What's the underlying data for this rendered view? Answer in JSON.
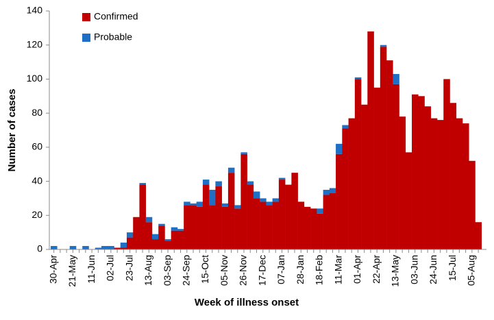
{
  "chart_data": {
    "type": "stacked_bar",
    "x_label": "Week of illness onset",
    "y_label": "Number of cases",
    "categories": [
      "30-Apr",
      null,
      null,
      "21-May",
      null,
      null,
      "11-Jun",
      null,
      null,
      "02-Jul",
      null,
      null,
      "23-Jul",
      null,
      null,
      "13-Aug",
      null,
      null,
      "03-Sep",
      null,
      null,
      "24-Sep",
      null,
      null,
      "15-Oct",
      null,
      null,
      "05-Nov",
      null,
      null,
      "26-Nov",
      null,
      null,
      "17-Dec",
      null,
      null,
      "07-Jan",
      null,
      null,
      "28-Jan",
      null,
      null,
      "18-Feb",
      null,
      null,
      "11-Mar",
      null,
      null,
      "01-Apr",
      null,
      null,
      "22-Apr",
      null,
      null,
      "13-May",
      null,
      null,
      "03-Jun",
      null,
      null,
      "24-Jun",
      null,
      null,
      "15-Jul",
      null,
      null,
      "05-Aug",
      null
    ],
    "series": [
      {
        "name": "Confirmed",
        "color": "#c00000",
        "values": [
          0,
          0,
          0,
          0,
          0,
          0,
          0,
          0,
          0,
          0,
          1,
          1,
          7,
          19,
          38,
          16,
          6,
          14,
          5,
          11,
          11,
          26,
          26,
          25,
          38,
          26,
          37,
          25,
          45,
          24,
          56,
          38,
          30,
          28,
          26,
          28,
          41,
          38,
          45,
          28,
          25,
          24,
          21,
          32,
          33,
          56,
          71,
          77,
          100,
          85,
          128,
          95,
          119,
          111,
          97,
          78,
          57,
          91,
          90,
          84,
          77,
          76,
          100,
          86,
          77,
          74,
          52,
          16
        ]
      },
      {
        "name": "Probable",
        "color": "#1f6fc5",
        "values": [
          2,
          0,
          0,
          2,
          0,
          2,
          0,
          1,
          2,
          2,
          0,
          3,
          3,
          0,
          1,
          3,
          3,
          1,
          1,
          2,
          1,
          2,
          1,
          3,
          3,
          9,
          3,
          2,
          3,
          2,
          1,
          2,
          4,
          2,
          2,
          2,
          1,
          0,
          0,
          0,
          0,
          0,
          3,
          3,
          3,
          6,
          2,
          0,
          1,
          0,
          0,
          0,
          1,
          0,
          6,
          0,
          0,
          0,
          0,
          0,
          0,
          0,
          0,
          0,
          0,
          0,
          0,
          0
        ]
      }
    ],
    "ylim": [
      0,
      140
    ],
    "yticks": [
      0,
      20,
      40,
      60,
      80,
      100,
      120,
      140
    ],
    "legend": "top-left"
  }
}
